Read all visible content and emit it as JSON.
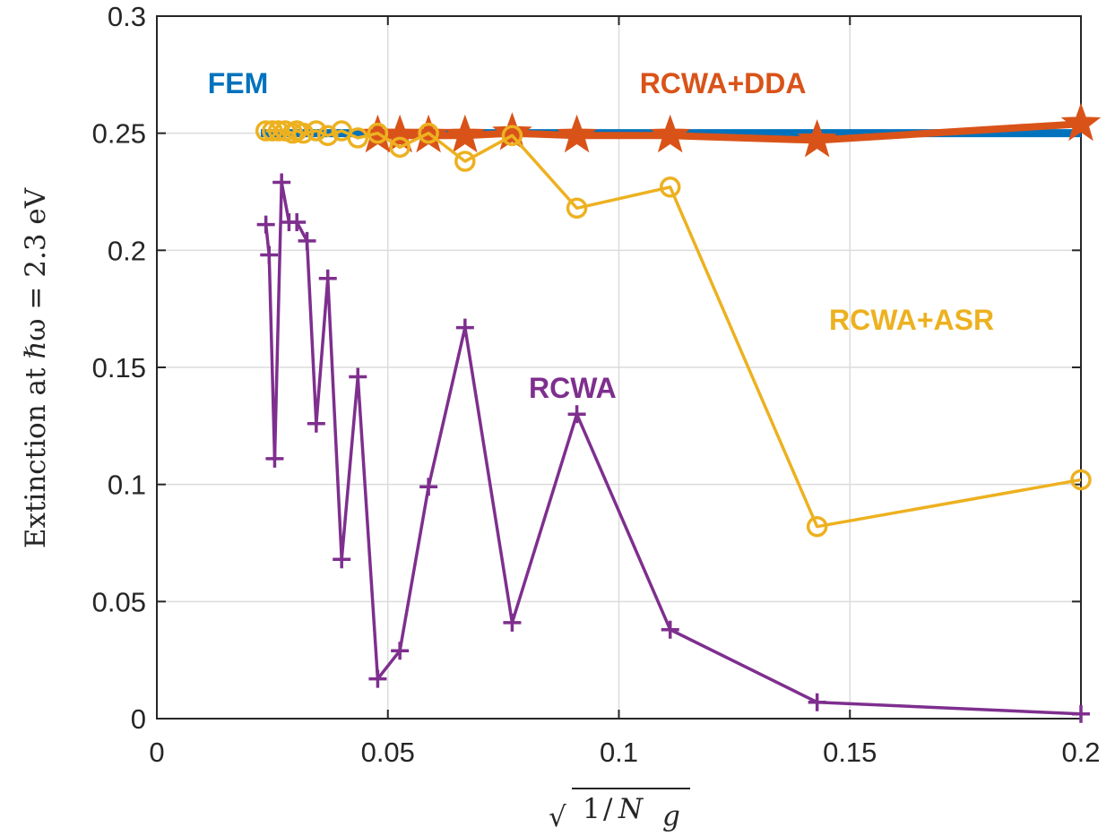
{
  "chart_data": {
    "type": "line",
    "title": "",
    "xlabel": "√(1/N_g)",
    "xlabel_parts": {
      "radical": "√",
      "numerator": "1",
      "slash": "/",
      "symbol": "N",
      "subscript": "g"
    },
    "ylabel": "Extinction at ℏω = 2.3 eV",
    "xlim": [
      0,
      0.2
    ],
    "ylim": [
      0,
      0.3
    ],
    "xticks": [
      0,
      0.05,
      0.1,
      0.15,
      0.2
    ],
    "xtick_labels": [
      "0",
      "0.05",
      "0.1",
      "0.15",
      "0.2"
    ],
    "yticks": [
      0,
      0.05,
      0.1,
      0.15,
      0.2,
      0.25,
      0.3
    ],
    "ytick_labels": [
      "0",
      "0.05",
      "0.1",
      "0.15",
      "0.2",
      "0.25",
      "0.3"
    ],
    "grid": true,
    "series": [
      {
        "name": "FEM",
        "color": "#0072BD",
        "marker": "none",
        "x": [
          0.0225,
          0.2
        ],
        "y": [
          0.25,
          0.25
        ]
      },
      {
        "name": "RCWA+DDA",
        "color": "#D95319",
        "marker": "star",
        "x": [
          0.0478,
          0.0526,
          0.0588,
          0.0667,
          0.0769,
          0.0909,
          0.1111,
          0.1429,
          0.2
        ],
        "y": [
          0.249,
          0.249,
          0.249,
          0.249,
          0.25,
          0.249,
          0.249,
          0.247,
          0.254
        ]
      },
      {
        "name": "RCWA+ASR",
        "color": "#EDB120",
        "marker": "circle",
        "x": [
          0.0236,
          0.025,
          0.0263,
          0.0278,
          0.0294,
          0.0303,
          0.0317,
          0.0345,
          0.037,
          0.04,
          0.0435,
          0.0478,
          0.0526,
          0.0588,
          0.0667,
          0.0769,
          0.0909,
          0.1111,
          0.1429,
          0.2
        ],
        "y": [
          0.251,
          0.251,
          0.251,
          0.251,
          0.25,
          0.251,
          0.25,
          0.251,
          0.249,
          0.251,
          0.248,
          0.25,
          0.244,
          0.25,
          0.238,
          0.249,
          0.218,
          0.227,
          0.082,
          0.102
        ]
      },
      {
        "name": "RCWA",
        "color": "#7E2F8E",
        "marker": "plus",
        "x": [
          0.0236,
          0.0243,
          0.0255,
          0.027,
          0.0286,
          0.0303,
          0.0325,
          0.0345,
          0.037,
          0.04,
          0.0435,
          0.0478,
          0.0526,
          0.0588,
          0.0667,
          0.0769,
          0.0909,
          0.1111,
          0.1429,
          0.2
        ],
        "y": [
          0.211,
          0.198,
          0.111,
          0.229,
          0.212,
          0.212,
          0.204,
          0.126,
          0.188,
          0.068,
          0.146,
          0.017,
          0.029,
          0.099,
          0.167,
          0.041,
          0.13,
          0.038,
          0.007,
          0.002
        ]
      }
    ],
    "annotations": [
      {
        "text": "FEM",
        "series": "FEM",
        "x": 0.011,
        "y": 0.267
      },
      {
        "text": "RCWA+DDA",
        "series": "RCWA+DDA",
        "x": 0.1045,
        "y": 0.267
      },
      {
        "text": "RCWA+ASR",
        "series": "RCWA+ASR",
        "x": 0.1455,
        "y": 0.166
      },
      {
        "text": "RCWA",
        "series": "RCWA",
        "x": 0.0805,
        "y": 0.137
      }
    ]
  }
}
